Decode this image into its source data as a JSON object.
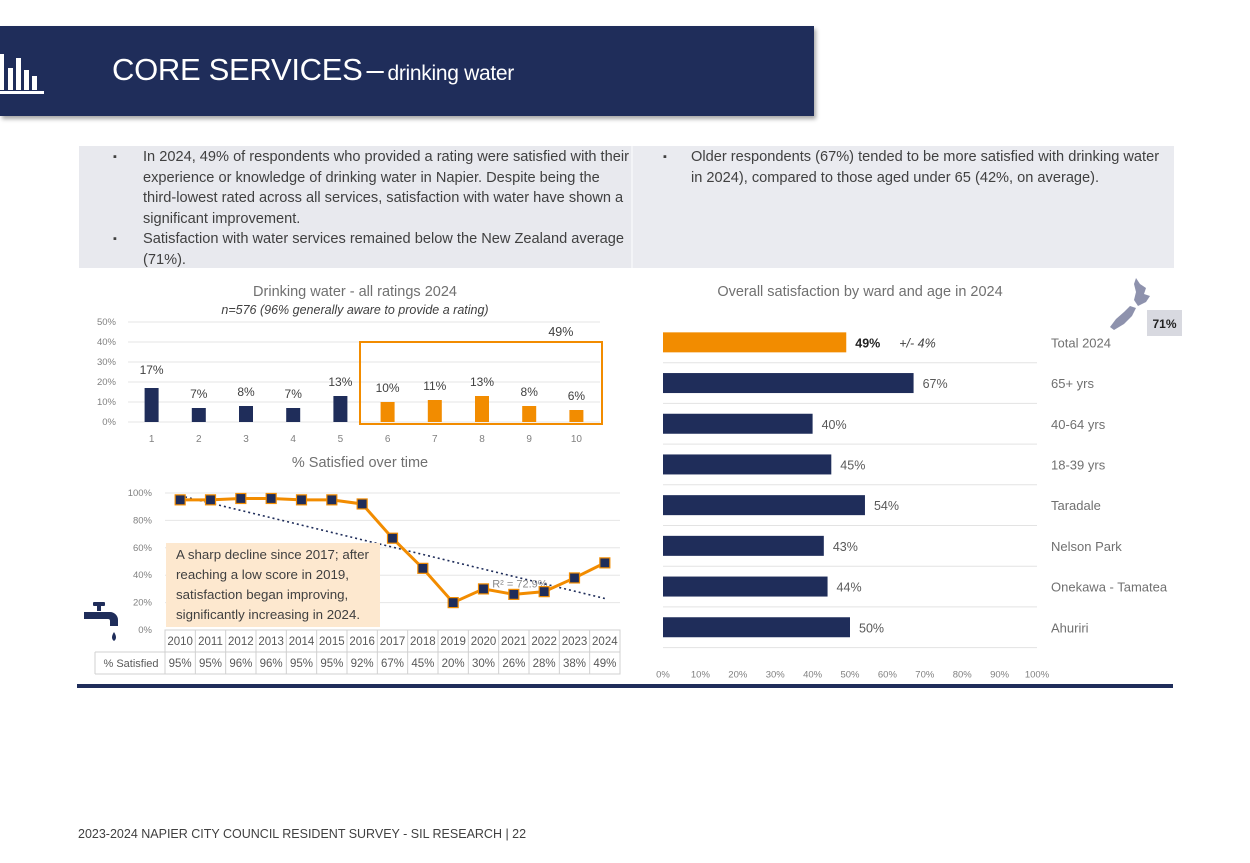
{
  "header": {
    "title": "CORE SERVICES",
    "dash": "–",
    "subtitle": "drinking water"
  },
  "bullets": {
    "left": [
      "In 2024, 49% of respondents who provided a rating were satisfied with their experience or knowledge of drinking water in Napier. Despite being the third-lowest rated across all services, satisfaction with water have shown a significant improvement.",
      "Satisfaction with water services remained below the New Zealand average (71%)."
    ],
    "right": [
      "Older respondents (67%) tended to be more satisfied with drinking water in 2024), compared to those aged under 65 (42%, on average)."
    ]
  },
  "chart_data": [
    {
      "type": "bar",
      "title": "Drinking water - all ratings 2024",
      "subtitle": "n=576 (96% generally aware to provide a rating)",
      "categories": [
        "1",
        "2",
        "3",
        "4",
        "5",
        "6",
        "7",
        "8",
        "9",
        "10"
      ],
      "values": [
        17,
        7,
        8,
        7,
        13,
        10,
        11,
        13,
        8,
        6
      ],
      "value_labels": [
        "17%",
        "7%",
        "8%",
        "7%",
        "13%",
        "10%",
        "11%",
        "13%",
        "8%",
        "6%"
      ],
      "ylim": [
        0,
        50
      ],
      "yticks": [
        "0%",
        "10%",
        "20%",
        "30%",
        "40%",
        "50%"
      ],
      "highlight": {
        "from": "6",
        "to": "10",
        "label": "49%"
      },
      "colors": {
        "bar_low": "#1f2d5a",
        "bar_high": "#f28c00",
        "highlight_box": "#f28c00"
      }
    },
    {
      "type": "line",
      "title": "% Satisfied over time",
      "series_label": "% Satisfied",
      "x": [
        "2010",
        "2011",
        "2012",
        "2013",
        "2014",
        "2015",
        "2016",
        "2017",
        "2018",
        "2019",
        "2020",
        "2021",
        "2022",
        "2023",
        "2024"
      ],
      "values": [
        95,
        95,
        96,
        96,
        95,
        95,
        92,
        67,
        45,
        20,
        30,
        26,
        28,
        38,
        49
      ],
      "value_labels": [
        "95%",
        "95%",
        "96%",
        "96%",
        "95%",
        "95%",
        "92%",
        "67%",
        "45%",
        "20%",
        "30%",
        "26%",
        "28%",
        "38%",
        "49%"
      ],
      "ylim": [
        0,
        100
      ],
      "yticks": [
        "0%",
        "20%",
        "40%",
        "60%",
        "80%",
        "100%"
      ],
      "trendline": {
        "r2_label": "R² = 72.9%",
        "start": 98,
        "end": 23
      },
      "annotation": "A sharp decline since 2017; after reaching a low score in 2019, satisfaction began improving, significantly increasing in 2024.",
      "colors": {
        "line": "#f28c00",
        "marker": "#1f2d5a",
        "callout": "#fde8cf"
      }
    },
    {
      "type": "bar",
      "orientation": "horizontal",
      "title": "Overall satisfaction by ward and age in 2024",
      "categories": [
        "Total 2024",
        "65+ yrs",
        "40-64 yrs",
        "18-39 yrs",
        "Taradale",
        "Nelson Park",
        "Onekawa - Tamatea",
        "Ahuriri"
      ],
      "values": [
        49,
        67,
        40,
        45,
        54,
        43,
        44,
        50
      ],
      "value_labels": [
        "49%",
        "67%",
        "40%",
        "45%",
        "54%",
        "43%",
        "44%",
        "50%"
      ],
      "margin_label": "+/- 4%",
      "xlim": [
        0,
        100
      ],
      "xticks": [
        "0%",
        "10%",
        "20%",
        "30%",
        "40%",
        "50%",
        "60%",
        "70%",
        "80%",
        "90%",
        "100%"
      ],
      "colors": {
        "total": "#f28c00",
        "other": "#1f2d5a"
      }
    }
  ],
  "nz_average": {
    "label": "71%",
    "icon": "new-zealand-map-icon"
  },
  "icons": {
    "header": "bar-chart-icon",
    "water": "water-tap-icon"
  },
  "footer": "2023-2024 NAPIER CITY COUNCIL RESIDENT SURVEY - SIL RESEARCH | 22"
}
